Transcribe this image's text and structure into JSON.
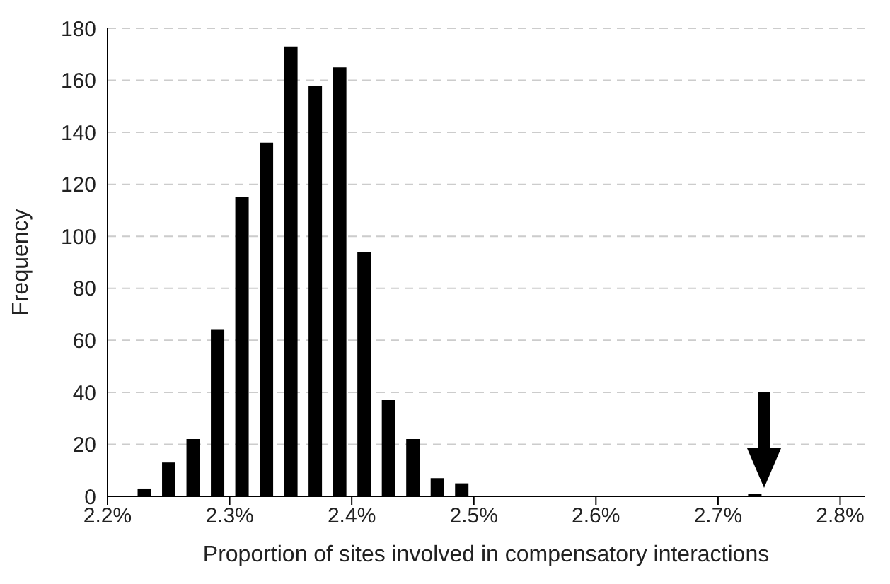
{
  "chart_data": {
    "type": "histogram",
    "xlabel": "Proportion of sites involved in compensatory interactions",
    "ylabel": "Frequency",
    "bins": [
      2.22,
      2.24,
      2.26,
      2.28,
      2.3,
      2.32,
      2.34,
      2.36,
      2.38,
      2.4,
      2.42,
      2.44,
      2.46,
      2.48,
      2.5,
      2.52,
      2.54,
      2.56,
      2.58,
      2.6,
      2.62,
      2.64,
      2.66,
      2.68,
      2.7,
      2.72,
      2.74
    ],
    "values": [
      3,
      13,
      22,
      64,
      115,
      136,
      173,
      158,
      165,
      94,
      37,
      22,
      7,
      5,
      0,
      0,
      0,
      0,
      0,
      0,
      0,
      0,
      0,
      0,
      0,
      1
    ],
    "color": "#000000",
    "xlim": [
      2.2,
      2.82
    ],
    "xticks": [
      {
        "value": 2.2,
        "label": "2.2%"
      },
      {
        "value": 2.3,
        "label": "2.3%"
      },
      {
        "value": 2.4,
        "label": "2.4%"
      },
      {
        "value": 2.5,
        "label": "2.5%"
      },
      {
        "value": 2.6,
        "label": "2.6%"
      },
      {
        "value": 2.7,
        "label": "2.7%"
      },
      {
        "value": 2.8,
        "label": "2.8%"
      }
    ],
    "ylim": [
      0,
      180
    ],
    "yticks": [
      0,
      20,
      40,
      60,
      80,
      100,
      120,
      140,
      160,
      180
    ],
    "grid": "y",
    "legend": false
  }
}
